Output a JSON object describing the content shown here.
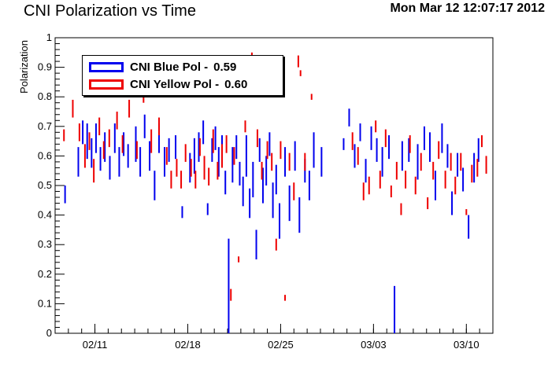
{
  "chart_data": {
    "type": "scatter",
    "title": "CNI Polarization vs Time",
    "timestamp": "Mon Mar 12 12:07:17 2012",
    "xlabel": "",
    "ylabel": "Polarization",
    "xlim": [
      "2012-02-08",
      "2012-03-12"
    ],
    "ylim": [
      0,
      1
    ],
    "x_tick_labels": [
      "02/11",
      "02/18",
      "02/25",
      "03/03",
      "03/10"
    ],
    "x_tick_dates": [
      "2012-02-11",
      "2012-02-18",
      "2012-02-25",
      "2012-03-03",
      "2012-03-10"
    ],
    "y_tick_labels": [
      "0",
      "0.1",
      "0.2",
      "0.3",
      "0.4",
      "0.5",
      "0.6",
      "0.7",
      "0.8",
      "0.9",
      "1"
    ],
    "y_ticks": [
      0,
      0.1,
      0.2,
      0.3,
      0.4,
      0.5,
      0.6,
      0.7,
      0.8,
      0.9,
      1
    ],
    "grid": false,
    "legend_position": "top-left",
    "series": [
      {
        "name": "CNI Blue Pol -",
        "value": "0.59",
        "color": "#0000ee",
        "points": [
          [
            "2012-02-08 18:00",
            0.47,
            0.03
          ],
          [
            "2012-02-09 18:00",
            0.58,
            0.05
          ],
          [
            "2012-02-10 02:00",
            0.68,
            0.04
          ],
          [
            "2012-02-10 10:00",
            0.65,
            0.06
          ],
          [
            "2012-02-10 18:00",
            0.61,
            0.05
          ],
          [
            "2012-02-11 02:00",
            0.66,
            0.05
          ],
          [
            "2012-02-11 10:00",
            0.59,
            0.04
          ],
          [
            "2012-02-11 18:00",
            0.63,
            0.05
          ],
          [
            "2012-02-12 03:00",
            0.56,
            0.04
          ],
          [
            "2012-02-12 12:00",
            0.66,
            0.05
          ],
          [
            "2012-02-12 20:00",
            0.58,
            0.05
          ],
          [
            "2012-02-13 04:00",
            0.64,
            0.04
          ],
          [
            "2012-02-13 12:00",
            0.6,
            0.04
          ],
          [
            "2012-02-14 02:00",
            0.64,
            0.06
          ],
          [
            "2012-02-14 10:00",
            0.58,
            0.05
          ],
          [
            "2012-02-14 18:00",
            0.7,
            0.04
          ],
          [
            "2012-02-15 03:00",
            0.6,
            0.05
          ],
          [
            "2012-02-15 12:00",
            0.5,
            0.05
          ],
          [
            "2012-02-15 20:00",
            0.66,
            0.05
          ],
          [
            "2012-02-16 06:00",
            0.58,
            0.05
          ],
          [
            "2012-02-16 14:00",
            0.62,
            0.04
          ],
          [
            "2012-02-17 02:00",
            0.63,
            0.04
          ],
          [
            "2012-02-17 14:00",
            0.41,
            0.02
          ],
          [
            "2012-02-18 04:00",
            0.56,
            0.05
          ],
          [
            "2012-02-18 12:00",
            0.6,
            0.06
          ],
          [
            "2012-02-18 20:00",
            0.63,
            0.05
          ],
          [
            "2012-02-19 04:00",
            0.68,
            0.04
          ],
          [
            "2012-02-19 12:00",
            0.42,
            0.02
          ],
          [
            "2012-02-19 20:00",
            0.62,
            0.04
          ],
          [
            "2012-02-20 02:00",
            0.66,
            0.04
          ],
          [
            "2012-02-20 08:00",
            0.58,
            0.05
          ],
          [
            "2012-02-20 14:00",
            0.62,
            0.05
          ],
          [
            "2012-02-20 20:00",
            0.51,
            0.04
          ],
          [
            "2012-02-21 02:00",
            0.16,
            0.16
          ],
          [
            "2012-02-21 09:00",
            0.57,
            0.06
          ],
          [
            "2012-02-21 16:00",
            0.63,
            0.04
          ],
          [
            "2012-02-21 22:00",
            0.54,
            0.04
          ],
          [
            "2012-02-22 04:00",
            0.48,
            0.05
          ],
          [
            "2012-02-22 10:00",
            0.6,
            0.07
          ],
          [
            "2012-02-22 16:00",
            0.44,
            0.05
          ],
          [
            "2012-02-22 22:00",
            0.52,
            0.06
          ],
          [
            "2012-02-23 04:00",
            0.3,
            0.05
          ],
          [
            "2012-02-23 10:00",
            0.62,
            0.04
          ],
          [
            "2012-02-23 16:00",
            0.5,
            0.06
          ],
          [
            "2012-02-23 22:00",
            0.55,
            0.05
          ],
          [
            "2012-02-24 04:00",
            0.64,
            0.04
          ],
          [
            "2012-02-24 10:00",
            0.45,
            0.06
          ],
          [
            "2012-02-24 16:00",
            0.52,
            0.05
          ],
          [
            "2012-02-24 22:00",
            0.38,
            0.06
          ],
          [
            "2012-02-25 08:00",
            0.58,
            0.05
          ],
          [
            "2012-02-25 16:00",
            0.44,
            0.06
          ],
          [
            "2012-02-26 02:00",
            0.6,
            0.05
          ],
          [
            "2012-02-26 10:00",
            0.4,
            0.06
          ],
          [
            "2012-02-26 20:00",
            0.55,
            0.04
          ],
          [
            "2012-02-27 04:00",
            0.5,
            0.05
          ],
          [
            "2012-02-27 12:00",
            0.62,
            0.06
          ],
          [
            "2012-02-28 02:00",
            0.58,
            0.05
          ],
          [
            "2012-02-29 18:00",
            0.64,
            0.02
          ],
          [
            "2012-03-01 04:00",
            0.73,
            0.03
          ],
          [
            "2012-03-01 14:00",
            0.6,
            0.04
          ],
          [
            "2012-03-02 00:00",
            0.68,
            0.03
          ],
          [
            "2012-03-02 10:00",
            0.55,
            0.04
          ],
          [
            "2012-03-02 20:00",
            0.66,
            0.04
          ],
          [
            "2012-03-03 06:00",
            0.62,
            0.04
          ],
          [
            "2012-03-03 16:00",
            0.58,
            0.05
          ],
          [
            "2012-03-04 04:00",
            0.63,
            0.04
          ],
          [
            "2012-03-04 14:00",
            0.08,
            0.08
          ],
          [
            "2012-03-05 04:00",
            0.6,
            0.05
          ],
          [
            "2012-03-05 16:00",
            0.62,
            0.04
          ],
          [
            "2012-03-06 08:00",
            0.58,
            0.06
          ],
          [
            "2012-03-06 20:00",
            0.66,
            0.04
          ],
          [
            "2012-03-07 06:00",
            0.63,
            0.05
          ],
          [
            "2012-03-07 16:00",
            0.5,
            0.05
          ],
          [
            "2012-03-08 04:00",
            0.66,
            0.05
          ],
          [
            "2012-03-08 14:00",
            0.6,
            0.04
          ],
          [
            "2012-03-08 22:00",
            0.44,
            0.04
          ],
          [
            "2012-03-09 08:00",
            0.57,
            0.04
          ],
          [
            "2012-03-09 18:00",
            0.52,
            0.04
          ],
          [
            "2012-03-10 04:00",
            0.36,
            0.04
          ],
          [
            "2012-03-10 14:00",
            0.56,
            0.05
          ],
          [
            "2012-03-10 22:00",
            0.62,
            0.04
          ]
        ]
      },
      {
        "name": "CNI Yellow Pol -",
        "value": "0.60",
        "color": "#ee0000",
        "points": [
          [
            "2012-02-08 16:00",
            0.67,
            0.02
          ],
          [
            "2012-02-09 08:00",
            0.76,
            0.03
          ],
          [
            "2012-02-09 20:00",
            0.68,
            0.03
          ],
          [
            "2012-02-10 06:00",
            0.6,
            0.04
          ],
          [
            "2012-02-10 14:00",
            0.65,
            0.03
          ],
          [
            "2012-02-10 22:00",
            0.55,
            0.04
          ],
          [
            "2012-02-11 08:00",
            0.7,
            0.03
          ],
          [
            "2012-02-11 16:00",
            0.62,
            0.03
          ],
          [
            "2012-02-12 02:00",
            0.66,
            0.03
          ],
          [
            "2012-02-12 16:00",
            0.72,
            0.03
          ],
          [
            "2012-02-13 02:00",
            0.64,
            0.03
          ],
          [
            "2012-02-13 14:00",
            0.76,
            0.03
          ],
          [
            "2012-02-14 04:00",
            0.62,
            0.03
          ],
          [
            "2012-02-14 16:00",
            0.8,
            0.02
          ],
          [
            "2012-02-15 06:00",
            0.65,
            0.04
          ],
          [
            "2012-02-15 20:00",
            0.7,
            0.03
          ],
          [
            "2012-02-16 10:00",
            0.6,
            0.03
          ],
          [
            "2012-02-16 18:00",
            0.52,
            0.03
          ],
          [
            "2012-02-17 04:00",
            0.56,
            0.03
          ],
          [
            "2012-02-17 12:00",
            0.52,
            0.03
          ],
          [
            "2012-02-17 20:00",
            0.61,
            0.03
          ],
          [
            "2012-02-18 06:00",
            0.56,
            0.03
          ],
          [
            "2012-02-18 14:00",
            0.52,
            0.03
          ],
          [
            "2012-02-18 22:00",
            0.63,
            0.03
          ],
          [
            "2012-02-19 06:00",
            0.56,
            0.04
          ],
          [
            "2012-02-19 14:00",
            0.53,
            0.03
          ],
          [
            "2012-02-19 22:00",
            0.65,
            0.04
          ],
          [
            "2012-02-20 06:00",
            0.55,
            0.03
          ],
          [
            "2012-02-20 14:00",
            0.6,
            0.04
          ],
          [
            "2012-02-20 22:00",
            0.64,
            0.03
          ],
          [
            "2012-02-21 06:00",
            0.13,
            0.02
          ],
          [
            "2012-02-21 12:00",
            0.6,
            0.03
          ],
          [
            "2012-02-21 20:00",
            0.25,
            0.01
          ],
          [
            "2012-02-22 08:00",
            0.7,
            0.02
          ],
          [
            "2012-02-22 20:00",
            0.94,
            0.01
          ],
          [
            "2012-02-23 06:00",
            0.66,
            0.03
          ],
          [
            "2012-02-23 14:00",
            0.55,
            0.03
          ],
          [
            "2012-02-24 00:00",
            0.62,
            0.03
          ],
          [
            "2012-02-24 08:00",
            0.58,
            0.03
          ],
          [
            "2012-02-24 16:00",
            0.3,
            0.02
          ],
          [
            "2012-02-25 00:00",
            0.62,
            0.03
          ],
          [
            "2012-02-25 08:00",
            0.12,
            0.01
          ],
          [
            "2012-02-25 16:00",
            0.58,
            0.03
          ],
          [
            "2012-02-26 00:00",
            0.48,
            0.03
          ],
          [
            "2012-02-26 08:00",
            0.92,
            0.02
          ],
          [
            "2012-02-26 12:00",
            0.88,
            0.01
          ],
          [
            "2012-02-26 20:00",
            0.58,
            0.03
          ],
          [
            "2012-02-27 08:00",
            0.8,
            0.01
          ],
          [
            "2012-03-01 10:00",
            0.65,
            0.03
          ],
          [
            "2012-03-01 20:00",
            0.6,
            0.03
          ],
          [
            "2012-03-02 06:00",
            0.48,
            0.03
          ],
          [
            "2012-03-02 16:00",
            0.5,
            0.03
          ],
          [
            "2012-03-03 04:00",
            0.7,
            0.02
          ],
          [
            "2012-03-03 12:00",
            0.52,
            0.03
          ],
          [
            "2012-03-03 22:00",
            0.66,
            0.03
          ],
          [
            "2012-03-04 08:00",
            0.48,
            0.02
          ],
          [
            "2012-03-04 18:00",
            0.55,
            0.03
          ],
          [
            "2012-03-05 02:00",
            0.42,
            0.02
          ],
          [
            "2012-03-05 10:00",
            0.52,
            0.03
          ],
          [
            "2012-03-05 18:00",
            0.64,
            0.03
          ],
          [
            "2012-03-06 04:00",
            0.5,
            0.03
          ],
          [
            "2012-03-06 14:00",
            0.58,
            0.03
          ],
          [
            "2012-03-07 02:00",
            0.44,
            0.02
          ],
          [
            "2012-03-07 12:00",
            0.55,
            0.03
          ],
          [
            "2012-03-07 22:00",
            0.62,
            0.03
          ],
          [
            "2012-03-08 10:00",
            0.52,
            0.03
          ],
          [
            "2012-03-08 20:00",
            0.58,
            0.03
          ],
          [
            "2012-03-09 04:00",
            0.5,
            0.03
          ],
          [
            "2012-03-09 14:00",
            0.58,
            0.03
          ],
          [
            "2012-03-10 00:00",
            0.41,
            0.01
          ],
          [
            "2012-03-10 10:00",
            0.54,
            0.03
          ],
          [
            "2012-03-10 20:00",
            0.56,
            0.03
          ],
          [
            "2012-03-11 04:00",
            0.65,
            0.02
          ],
          [
            "2012-03-11 12:00",
            0.57,
            0.03
          ]
        ]
      }
    ]
  }
}
